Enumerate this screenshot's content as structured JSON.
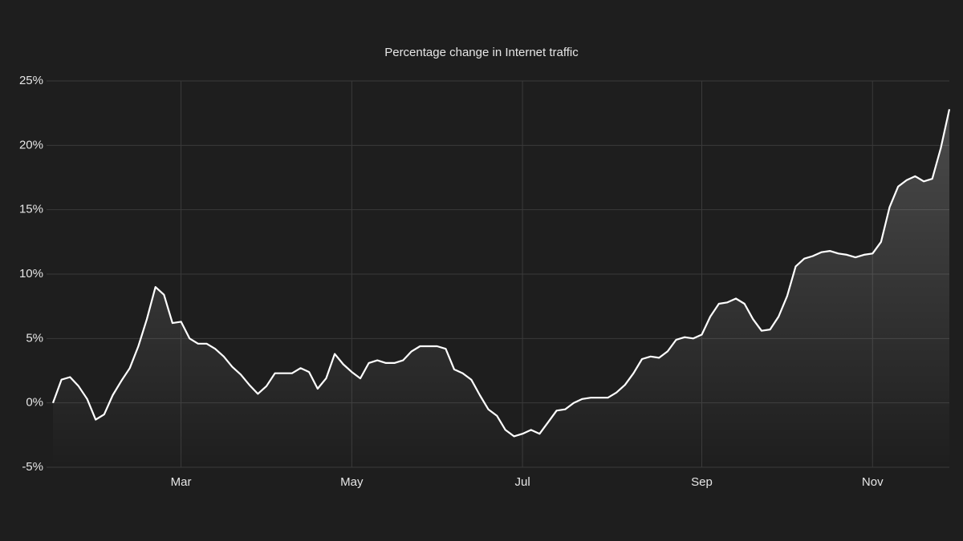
{
  "chart_data": {
    "type": "line",
    "title": "Percentage change in Internet traffic",
    "categories": [
      null,
      null,
      null,
      null,
      null,
      null,
      null,
      null,
      null,
      null,
      null,
      null,
      null,
      null,
      null,
      "Mar",
      null,
      null,
      null,
      null,
      null,
      null,
      null,
      null,
      null,
      null,
      null,
      null,
      null,
      null,
      null,
      null,
      null,
      null,
      null,
      "May",
      null,
      null,
      null,
      null,
      null,
      null,
      null,
      null,
      null,
      null,
      null,
      null,
      null,
      null,
      null,
      null,
      null,
      null,
      null,
      "Jul",
      null,
      null,
      null,
      null,
      null,
      null,
      null,
      null,
      null,
      null,
      null,
      null,
      null,
      null,
      null,
      null,
      null,
      null,
      null,
      null,
      "Sep",
      null,
      null,
      null,
      null,
      null,
      null,
      null,
      null,
      null,
      null,
      null,
      null,
      null,
      null,
      null,
      null,
      null,
      null,
      null,
      "Nov",
      null,
      null,
      null,
      null,
      null,
      null,
      null,
      null,
      null
    ],
    "values": [
      0,
      1.8,
      2.0,
      1.3,
      0.3,
      -1.3,
      -0.9,
      0.6,
      1.7,
      2.7,
      4.4,
      6.5,
      9.0,
      8.4,
      6.2,
      6.3,
      5.0,
      4.6,
      4.6,
      4.2,
      3.6,
      2.8,
      2.2,
      1.4,
      0.7,
      1.3,
      2.3,
      2.3,
      2.3,
      2.7,
      2.4,
      1.1,
      1.9,
      3.8,
      3.0,
      2.4,
      1.9,
      3.1,
      3.3,
      3.1,
      3.1,
      3.3,
      4.0,
      4.4,
      4.4,
      4.4,
      4.2,
      2.6,
      2.3,
      1.8,
      0.6,
      -0.5,
      -1.0,
      -2.1,
      -2.6,
      -2.4,
      -2.1,
      -2.4,
      -1.5,
      -0.6,
      -0.5,
      0.0,
      0.3,
      0.4,
      0.4,
      0.4,
      0.8,
      1.4,
      2.3,
      3.4,
      3.6,
      3.5,
      4.0,
      4.9,
      5.1,
      5.0,
      5.3,
      6.7,
      7.7,
      7.8,
      8.1,
      7.7,
      6.5,
      5.6,
      5.7,
      6.7,
      8.3,
      10.6,
      11.2,
      11.4,
      11.7,
      11.8,
      11.6,
      11.5,
      11.3,
      11.5,
      11.6,
      12.5,
      15.2,
      16.8,
      17.3,
      17.6,
      17.2,
      17.4,
      19.8,
      22.8
    ],
    "color": "#ffffff",
    "ylim": [
      -5,
      25
    ],
    "yticks": [
      {
        "value": -5,
        "label": "-5%"
      },
      {
        "value": 0,
        "label": "0%"
      },
      {
        "value": 5,
        "label": "5%"
      },
      {
        "value": 10,
        "label": "10%"
      },
      {
        "value": 15,
        "label": "15%"
      },
      {
        "value": 20,
        "label": "20%"
      },
      {
        "value": 25,
        "label": "25%"
      }
    ],
    "grid": true
  }
}
